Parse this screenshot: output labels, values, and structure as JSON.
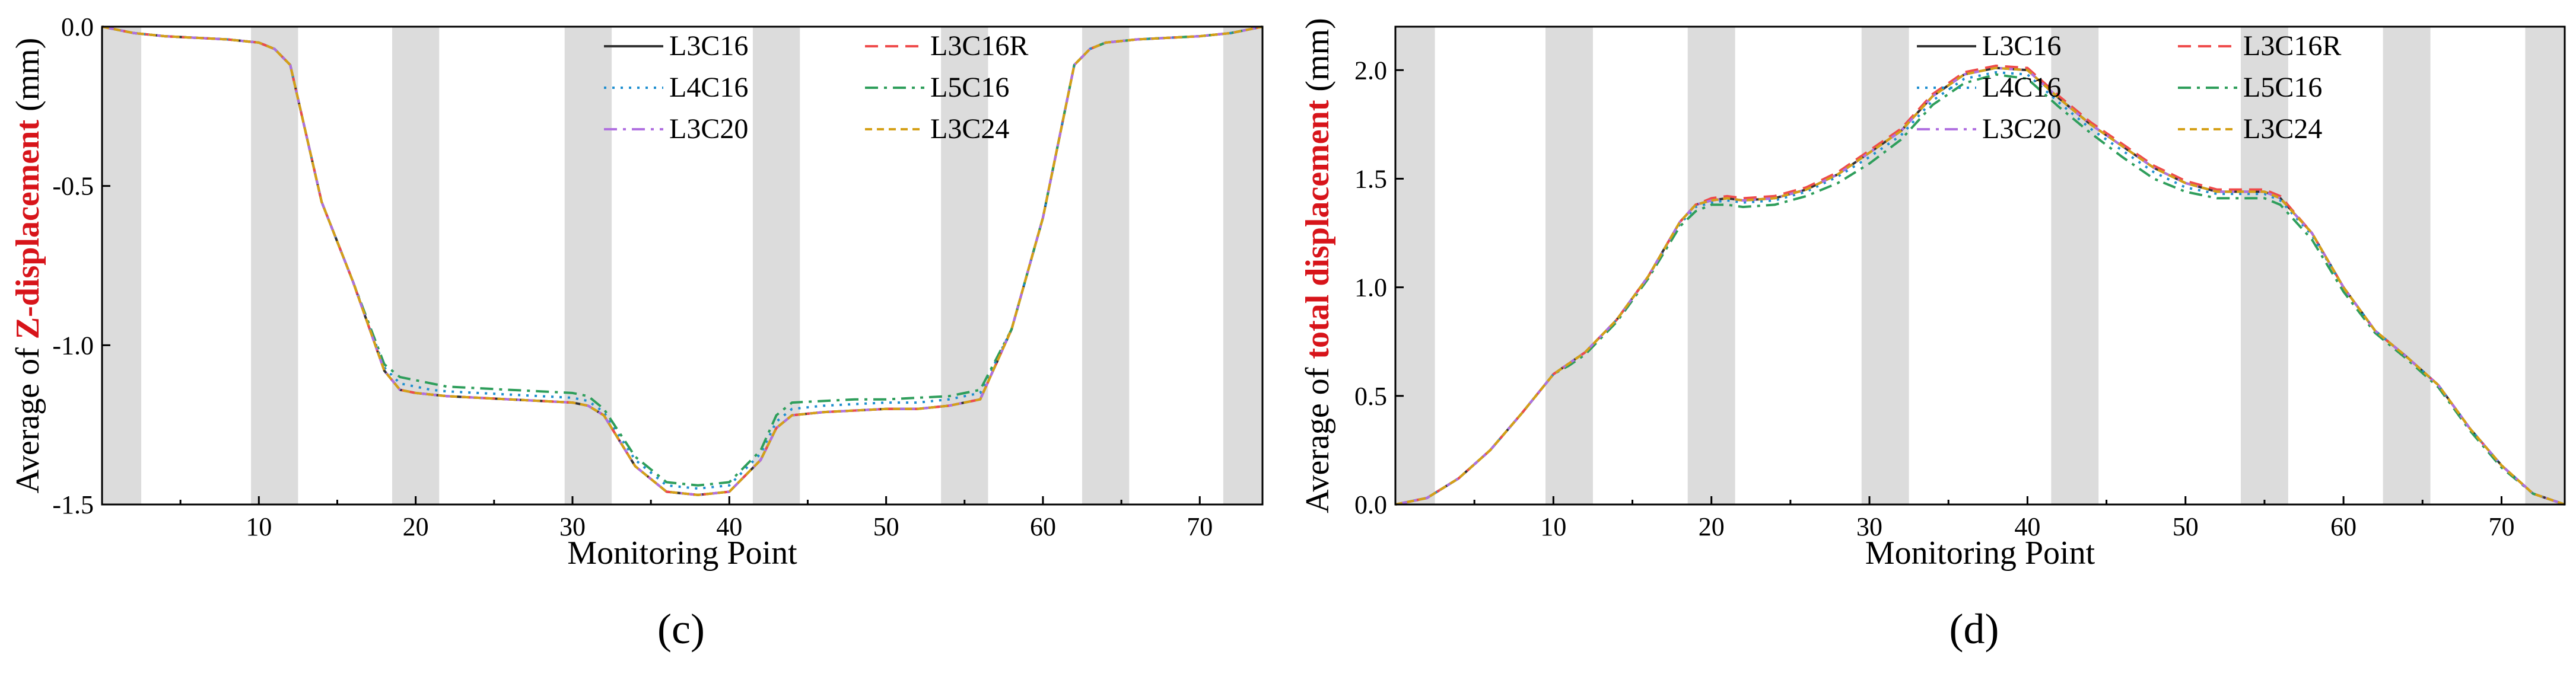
{
  "chart_data": [
    {
      "type": "line",
      "panel_label": "(c)",
      "xlabel": "Monitoring Point",
      "ylabel_parts": [
        "Average of ",
        "Z-displacement",
        " (mm)"
      ],
      "xlim": [
        0,
        74
      ],
      "ylim": [
        -1.5,
        0.0
      ],
      "xticks": [
        10,
        20,
        30,
        40,
        50,
        60,
        70
      ],
      "yticks": [
        0.0,
        -0.5,
        -1.0,
        -1.5
      ],
      "ytick_labels": [
        "0.0",
        "-0.5",
        "-1.0",
        "-1.5"
      ],
      "shaded_bands": [
        [
          0,
          2.5
        ],
        [
          9.5,
          12.5
        ],
        [
          18.5,
          21.5
        ],
        [
          29.5,
          32.5
        ],
        [
          41.5,
          44.5
        ],
        [
          53.5,
          56.5
        ],
        [
          62.5,
          65.5
        ],
        [
          71.5,
          74
        ]
      ],
      "legend_position": "top-right",
      "x": [
        0,
        2,
        4,
        6,
        8,
        10,
        11,
        12,
        14,
        16,
        18,
        19,
        20,
        21,
        22,
        24,
        26,
        28,
        30,
        31,
        32,
        34,
        36,
        38,
        40,
        42,
        43,
        44,
        46,
        48,
        50,
        52,
        54,
        56,
        58,
        60,
        62,
        63,
        64,
        66,
        68,
        70,
        72,
        74
      ],
      "series": [
        {
          "name": "L3C16",
          "color": "#333333",
          "dash": "solid",
          "values": [
            0.0,
            -0.02,
            -0.03,
            -0.035,
            -0.04,
            -0.05,
            -0.07,
            -0.12,
            -0.55,
            -0.8,
            -1.08,
            -1.14,
            -1.15,
            -1.155,
            -1.16,
            -1.165,
            -1.17,
            -1.175,
            -1.18,
            -1.19,
            -1.22,
            -1.38,
            -1.46,
            -1.47,
            -1.46,
            -1.36,
            -1.26,
            -1.22,
            -1.21,
            -1.205,
            -1.2,
            -1.2,
            -1.19,
            -1.17,
            -0.95,
            -0.6,
            -0.12,
            -0.07,
            -0.05,
            -0.04,
            -0.035,
            -0.03,
            -0.02,
            0.0
          ]
        },
        {
          "name": "L3C16R",
          "color": "#ef4b4b",
          "dash": "dashed",
          "values": [
            0.0,
            -0.02,
            -0.03,
            -0.035,
            -0.04,
            -0.05,
            -0.07,
            -0.12,
            -0.55,
            -0.8,
            -1.08,
            -1.14,
            -1.15,
            -1.155,
            -1.16,
            -1.165,
            -1.17,
            -1.175,
            -1.18,
            -1.19,
            -1.22,
            -1.38,
            -1.46,
            -1.47,
            -1.46,
            -1.36,
            -1.26,
            -1.22,
            -1.21,
            -1.205,
            -1.2,
            -1.2,
            -1.19,
            -1.17,
            -0.95,
            -0.6,
            -0.12,
            -0.07,
            -0.05,
            -0.04,
            -0.035,
            -0.03,
            -0.02,
            0.0
          ]
        },
        {
          "name": "L4C16",
          "color": "#1f8fd0",
          "dash": "dotted",
          "values": [
            0.0,
            -0.02,
            -0.03,
            -0.035,
            -0.04,
            -0.05,
            -0.07,
            -0.12,
            -0.55,
            -0.8,
            -1.07,
            -1.12,
            -1.13,
            -1.14,
            -1.145,
            -1.15,
            -1.155,
            -1.16,
            -1.165,
            -1.175,
            -1.21,
            -1.36,
            -1.44,
            -1.45,
            -1.44,
            -1.34,
            -1.24,
            -1.2,
            -1.19,
            -1.185,
            -1.18,
            -1.18,
            -1.17,
            -1.15,
            -0.95,
            -0.6,
            -0.12,
            -0.07,
            -0.05,
            -0.04,
            -0.035,
            -0.03,
            -0.02,
            0.0
          ]
        },
        {
          "name": "L5C16",
          "color": "#2e9e5b",
          "dash": "dashdot",
          "values": [
            0.0,
            -0.02,
            -0.03,
            -0.035,
            -0.04,
            -0.05,
            -0.07,
            -0.12,
            -0.55,
            -0.8,
            -1.06,
            -1.1,
            -1.11,
            -1.12,
            -1.13,
            -1.135,
            -1.14,
            -1.145,
            -1.15,
            -1.16,
            -1.2,
            -1.35,
            -1.43,
            -1.44,
            -1.43,
            -1.33,
            -1.22,
            -1.18,
            -1.175,
            -1.17,
            -1.17,
            -1.165,
            -1.16,
            -1.14,
            -0.95,
            -0.6,
            -0.12,
            -0.07,
            -0.05,
            -0.04,
            -0.035,
            -0.03,
            -0.02,
            0.0
          ]
        },
        {
          "name": "L3C20",
          "color": "#b070e0",
          "dash": "dashdot",
          "values": [
            0.0,
            -0.02,
            -0.03,
            -0.035,
            -0.04,
            -0.05,
            -0.07,
            -0.12,
            -0.55,
            -0.8,
            -1.08,
            -1.14,
            -1.15,
            -1.155,
            -1.16,
            -1.165,
            -1.17,
            -1.175,
            -1.18,
            -1.19,
            -1.22,
            -1.38,
            -1.46,
            -1.47,
            -1.46,
            -1.36,
            -1.26,
            -1.22,
            -1.21,
            -1.205,
            -1.2,
            -1.2,
            -1.19,
            -1.17,
            -0.95,
            -0.6,
            -0.12,
            -0.07,
            -0.05,
            -0.04,
            -0.035,
            -0.03,
            -0.02,
            0.0
          ]
        },
        {
          "name": "L3C24",
          "color": "#d4a017",
          "dash": "shortdash",
          "values": [
            0.0,
            -0.02,
            -0.03,
            -0.035,
            -0.04,
            -0.05,
            -0.07,
            -0.12,
            -0.55,
            -0.8,
            -1.08,
            -1.14,
            -1.15,
            -1.155,
            -1.16,
            -1.165,
            -1.17,
            -1.175,
            -1.18,
            -1.19,
            -1.22,
            -1.38,
            -1.46,
            -1.47,
            -1.46,
            -1.36,
            -1.26,
            -1.22,
            -1.21,
            -1.205,
            -1.2,
            -1.2,
            -1.19,
            -1.17,
            -0.95,
            -0.6,
            -0.12,
            -0.07,
            -0.05,
            -0.04,
            -0.035,
            -0.03,
            -0.02,
            0.0
          ]
        }
      ]
    },
    {
      "type": "line",
      "panel_label": "(d)",
      "xlabel": "Monitoring Point",
      "ylabel_parts": [
        "Average of ",
        "total displacement",
        " (mm)"
      ],
      "xlim": [
        0,
        74
      ],
      "ylim": [
        0.0,
        2.2
      ],
      "xticks": [
        10,
        20,
        30,
        40,
        50,
        60,
        70
      ],
      "yticks": [
        0.0,
        0.5,
        1.0,
        1.5,
        2.0
      ],
      "ytick_labels": [
        "0.0",
        "0.5",
        "1.0",
        "1.5",
        "2.0"
      ],
      "shaded_bands": [
        [
          0,
          2.5
        ],
        [
          9.5,
          12.5
        ],
        [
          18.5,
          21.5
        ],
        [
          29.5,
          32.5
        ],
        [
          41.5,
          44.5
        ],
        [
          53.5,
          56.5
        ],
        [
          62.5,
          65.5
        ],
        [
          71.5,
          74
        ]
      ],
      "legend_position": "top-right",
      "x": [
        0,
        2,
        4,
        6,
        8,
        10,
        11,
        12,
        14,
        16,
        18,
        19,
        20,
        21,
        22,
        24,
        26,
        28,
        30,
        32,
        34,
        36,
        38,
        40,
        42,
        44,
        46,
        48,
        50,
        52,
        54,
        55,
        56,
        58,
        60,
        62,
        64,
        66,
        68,
        70,
        72,
        74
      ],
      "series": [
        {
          "name": "L3C16",
          "color": "#333333",
          "dash": "solid",
          "values": [
            0.0,
            0.03,
            0.12,
            0.25,
            0.42,
            0.6,
            0.65,
            0.7,
            0.85,
            1.05,
            1.3,
            1.38,
            1.4,
            1.41,
            1.4,
            1.41,
            1.45,
            1.52,
            1.62,
            1.72,
            1.88,
            1.98,
            2.01,
            2.0,
            1.87,
            1.75,
            1.65,
            1.55,
            1.48,
            1.44,
            1.44,
            1.44,
            1.41,
            1.25,
            1.0,
            0.8,
            0.68,
            0.55,
            0.35,
            0.18,
            0.05,
            0.0
          ]
        },
        {
          "name": "L3C16R",
          "color": "#ef4b4b",
          "dash": "dashed",
          "values": [
            0.0,
            0.03,
            0.12,
            0.25,
            0.42,
            0.6,
            0.65,
            0.7,
            0.85,
            1.05,
            1.3,
            1.38,
            1.41,
            1.42,
            1.41,
            1.42,
            1.46,
            1.53,
            1.63,
            1.73,
            1.89,
            1.99,
            2.02,
            2.01,
            1.88,
            1.76,
            1.66,
            1.56,
            1.49,
            1.45,
            1.45,
            1.45,
            1.42,
            1.25,
            1.0,
            0.8,
            0.68,
            0.55,
            0.35,
            0.18,
            0.05,
            0.0
          ]
        },
        {
          "name": "L4C16",
          "color": "#1f8fd0",
          "dash": "dotted",
          "values": [
            0.0,
            0.03,
            0.12,
            0.25,
            0.42,
            0.6,
            0.65,
            0.7,
            0.85,
            1.05,
            1.29,
            1.37,
            1.39,
            1.4,
            1.39,
            1.4,
            1.44,
            1.51,
            1.6,
            1.7,
            1.86,
            1.96,
            1.99,
            1.98,
            1.85,
            1.73,
            1.63,
            1.53,
            1.46,
            1.43,
            1.43,
            1.43,
            1.4,
            1.24,
            1.0,
            0.8,
            0.68,
            0.55,
            0.35,
            0.18,
            0.05,
            0.0
          ]
        },
        {
          "name": "L5C16",
          "color": "#2e9e5b",
          "dash": "dashdot",
          "values": [
            0.0,
            0.03,
            0.12,
            0.25,
            0.42,
            0.6,
            0.64,
            0.69,
            0.84,
            1.04,
            1.28,
            1.35,
            1.38,
            1.38,
            1.37,
            1.38,
            1.42,
            1.48,
            1.57,
            1.68,
            1.84,
            1.94,
            1.98,
            1.96,
            1.83,
            1.71,
            1.6,
            1.5,
            1.44,
            1.41,
            1.41,
            1.41,
            1.38,
            1.22,
            0.98,
            0.79,
            0.67,
            0.54,
            0.34,
            0.17,
            0.05,
            0.0
          ]
        },
        {
          "name": "L3C20",
          "color": "#b070e0",
          "dash": "dashdot",
          "values": [
            0.0,
            0.03,
            0.12,
            0.25,
            0.42,
            0.6,
            0.65,
            0.7,
            0.85,
            1.05,
            1.3,
            1.38,
            1.4,
            1.41,
            1.4,
            1.41,
            1.45,
            1.52,
            1.62,
            1.72,
            1.88,
            1.98,
            2.01,
            2.0,
            1.87,
            1.75,
            1.65,
            1.55,
            1.48,
            1.44,
            1.44,
            1.44,
            1.41,
            1.25,
            1.0,
            0.8,
            0.68,
            0.55,
            0.35,
            0.18,
            0.05,
            0.0
          ]
        },
        {
          "name": "L3C24",
          "color": "#d4a017",
          "dash": "shortdash",
          "values": [
            0.0,
            0.03,
            0.12,
            0.25,
            0.42,
            0.6,
            0.65,
            0.7,
            0.85,
            1.05,
            1.3,
            1.38,
            1.4,
            1.41,
            1.4,
            1.41,
            1.45,
            1.52,
            1.62,
            1.72,
            1.88,
            1.98,
            2.01,
            2.0,
            1.87,
            1.75,
            1.65,
            1.55,
            1.48,
            1.44,
            1.44,
            1.44,
            1.41,
            1.25,
            1.0,
            0.8,
            0.68,
            0.55,
            0.35,
            0.18,
            0.05,
            0.0
          ]
        }
      ]
    }
  ]
}
